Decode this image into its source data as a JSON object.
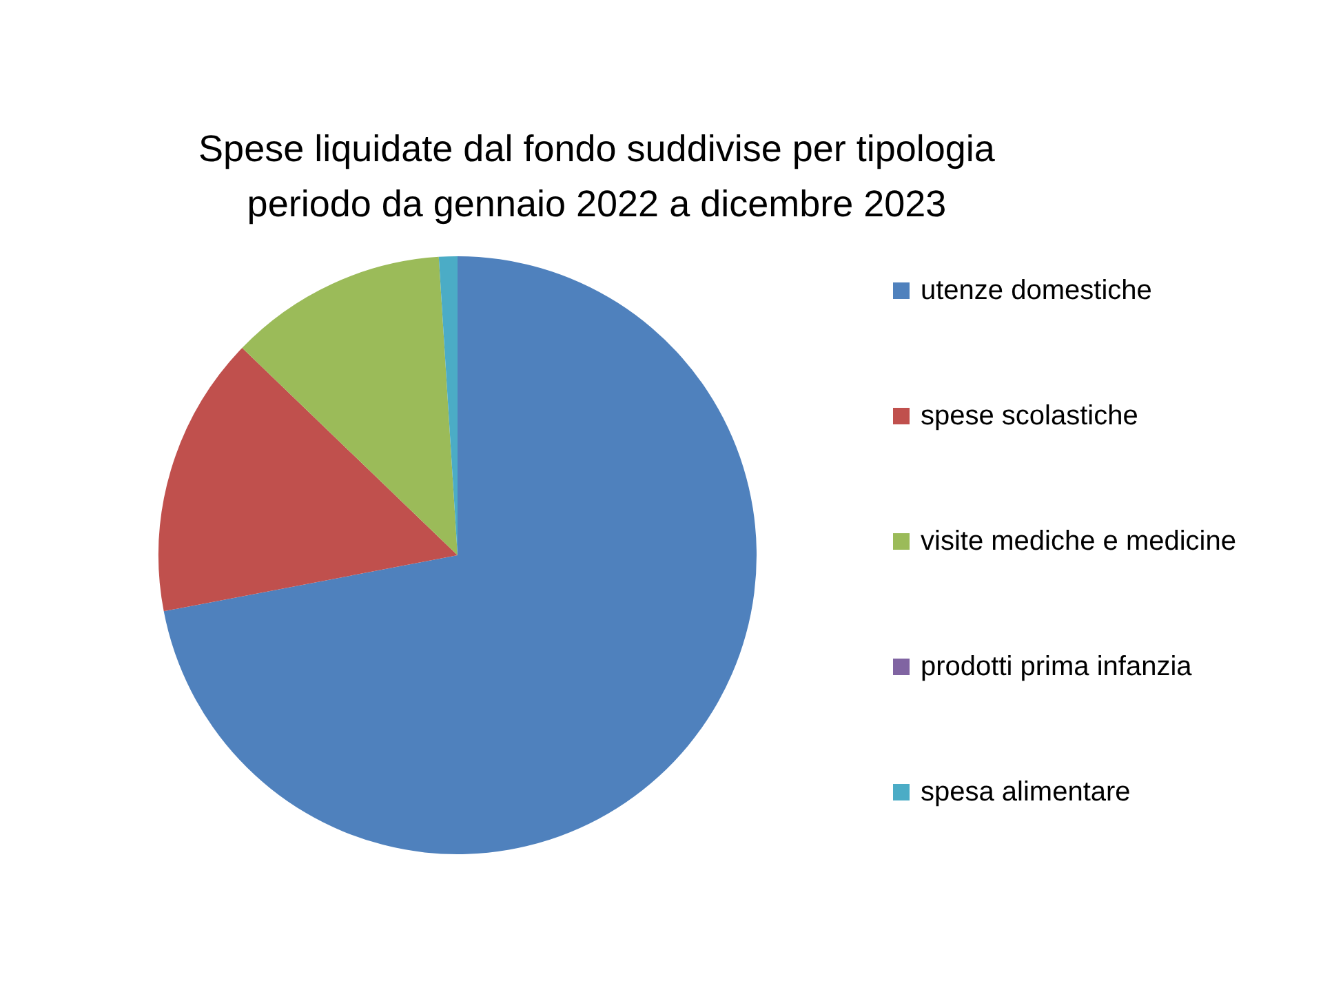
{
  "chart_data": {
    "type": "pie",
    "title": "Spese liquidate dal fondo suddivise per tipologia\nperiodo da gennaio 2022 a dicembre 2023",
    "categories": [
      "utenze domestiche",
      "spese scolastiche",
      "visite mediche e medicine",
      "prodotti prima infanzia",
      "spesa alimentare"
    ],
    "values": [
      72,
      15.2,
      11.8,
      0,
      1
    ],
    "colors": [
      "#4f81bd",
      "#c0504d",
      "#9bbb59",
      "#8064a2",
      "#4bacc6"
    ],
    "legend": "right"
  }
}
